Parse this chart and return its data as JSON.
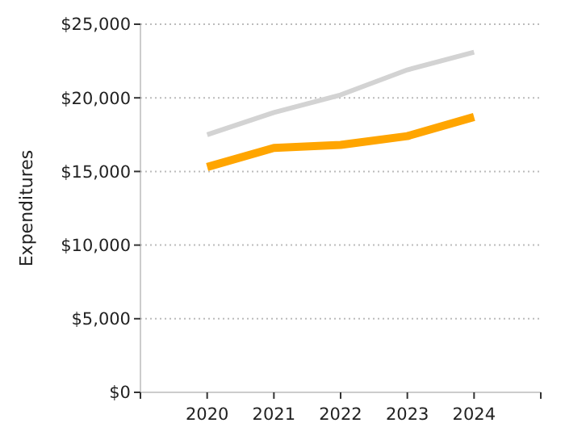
{
  "chart_data": {
    "type": "line",
    "ylabel": "Expenditures",
    "x": [
      2020,
      2021,
      2022,
      2023,
      2024
    ],
    "xlim": [
      2019,
      2025
    ],
    "xticks": [
      {
        "value": 2019,
        "label": null
      },
      2020,
      2021,
      2022,
      2023,
      2024,
      {
        "value": 2025,
        "label": null
      }
    ],
    "ylim": [
      0,
      25000
    ],
    "yticks": [
      {
        "value": 0,
        "label": "$0"
      },
      {
        "value": 5000,
        "label": "$5,000"
      },
      {
        "value": 10000,
        "label": "$10,000"
      },
      {
        "value": 15000,
        "label": "$15,000"
      },
      {
        "value": 20000,
        "label": "$20,000"
      },
      {
        "value": 25000,
        "label": "$25,000"
      }
    ],
    "grid": "y",
    "marker": "none",
    "line_style": "solid",
    "series": [
      {
        "color": "#d3d3d3",
        "values": [
          17500,
          19000,
          20200,
          21900,
          23100
        ]
      },
      {
        "color": "#ffa500",
        "values": [
          15300,
          16600,
          16800,
          17400,
          18700
        ]
      }
    ]
  }
}
